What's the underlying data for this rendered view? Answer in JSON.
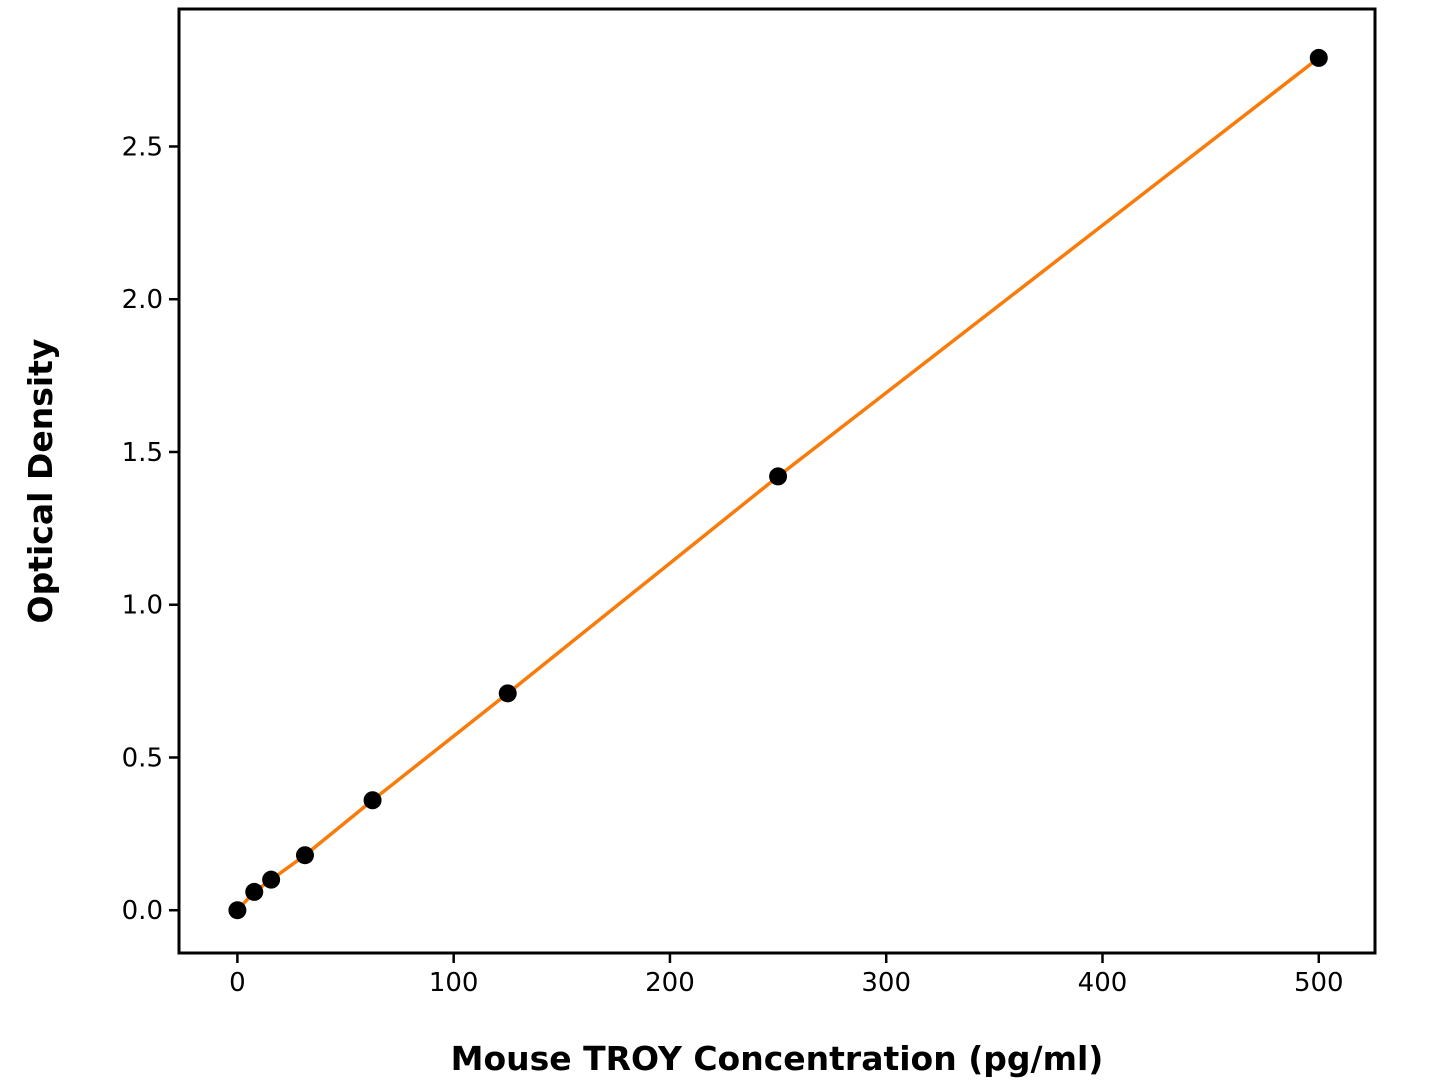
{
  "figure": {
    "background": "#ffffff",
    "axis_color": "#000000",
    "line_color": "#F97B0A",
    "marker_color": "#000000"
  },
  "chart_data": {
    "type": "scatter",
    "title": "",
    "xlabel": "Mouse TROY Concentration (pg/ml)",
    "ylabel": "Optical Density",
    "series": [
      {
        "name": "standard-curve",
        "x": [
          0,
          7.8,
          15.6,
          31.25,
          62.5,
          125,
          250,
          500
        ],
        "y": [
          0.0,
          0.06,
          0.1,
          0.18,
          0.36,
          0.71,
          1.42,
          2.79
        ],
        "line": true,
        "marker": "circle"
      }
    ],
    "xticks": {
      "values": [
        0,
        100,
        200,
        300,
        400,
        500
      ],
      "labels": [
        "0",
        "100",
        "200",
        "300",
        "400",
        "500"
      ]
    },
    "yticks": {
      "values": [
        0.0,
        0.5,
        1.0,
        1.5,
        2.0,
        2.5
      ],
      "labels": [
        "0.0",
        "0.5",
        "1.0",
        "1.5",
        "2.0",
        "2.5"
      ]
    },
    "xlim": [
      -27,
      526
    ],
    "ylim": [
      -0.14,
      2.95
    ],
    "grid": false,
    "legend": false
  }
}
